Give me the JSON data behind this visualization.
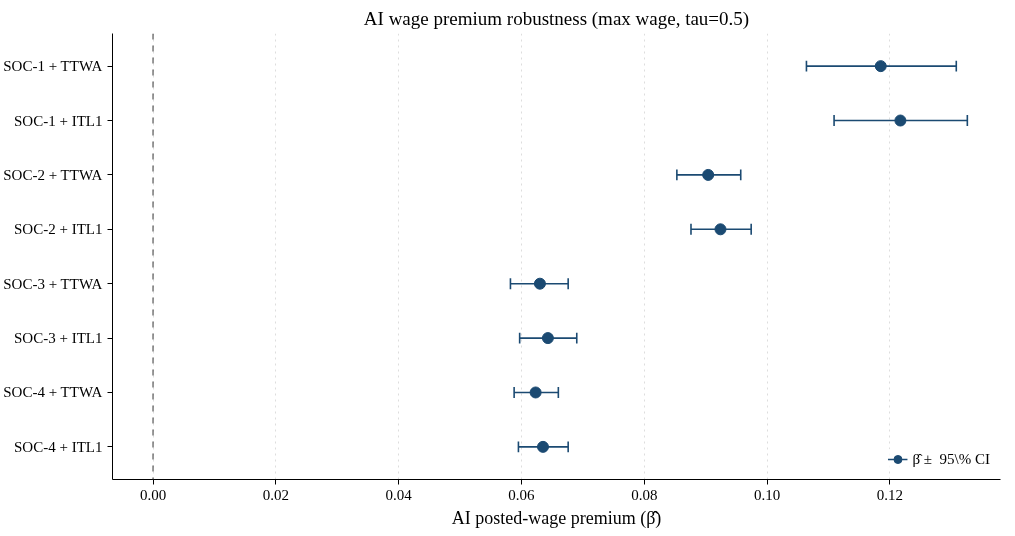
{
  "chart_data": {
    "type": "scatter",
    "orientation": "horizontal",
    "title": "AI wage premium robustness (max wage, tau=0.5)",
    "xlabel": "AI posted-wage premium (β̂)",
    "categories": [
      "SOC-1 + TTWA",
      "SOC-1 + ITL1",
      "SOC-2 + TTWA",
      "SOC-2 + ITL1",
      "SOC-3 + TTWA",
      "SOC-3 + ITL1",
      "SOC-4 + TTWA",
      "SOC-4 + ITL1"
    ],
    "series": [
      {
        "name": "β̂ ±  95\\% CI",
        "color": "#1b4a72",
        "values": [
          0.1185,
          0.1217,
          0.0904,
          0.0924,
          0.063,
          0.0643,
          0.0623,
          0.0635
        ],
        "errors": [
          [
            0.1064,
            0.1308
          ],
          [
            0.1109,
            0.1326
          ],
          [
            0.0853,
            0.0957
          ],
          [
            0.0876,
            0.0974
          ],
          [
            0.0582,
            0.0676
          ],
          [
            0.0597,
            0.069
          ],
          [
            0.0588,
            0.066
          ],
          [
            0.0595,
            0.0676
          ]
        ]
      }
    ],
    "xlim": [
      -0.0066,
      0.138
    ],
    "xticks": [
      {
        "value": 0,
        "label": "0.00"
      },
      0.02,
      0.04,
      0.06,
      0.08,
      {
        "value": 0.1,
        "label": "0.10"
      },
      0.12
    ],
    "ref_lines": [
      {
        "axis": "x",
        "value": 0,
        "color": "#555555",
        "line_style": "dashed"
      }
    ],
    "grid": "x",
    "legend": "bottom right",
    "marker": "circle"
  }
}
